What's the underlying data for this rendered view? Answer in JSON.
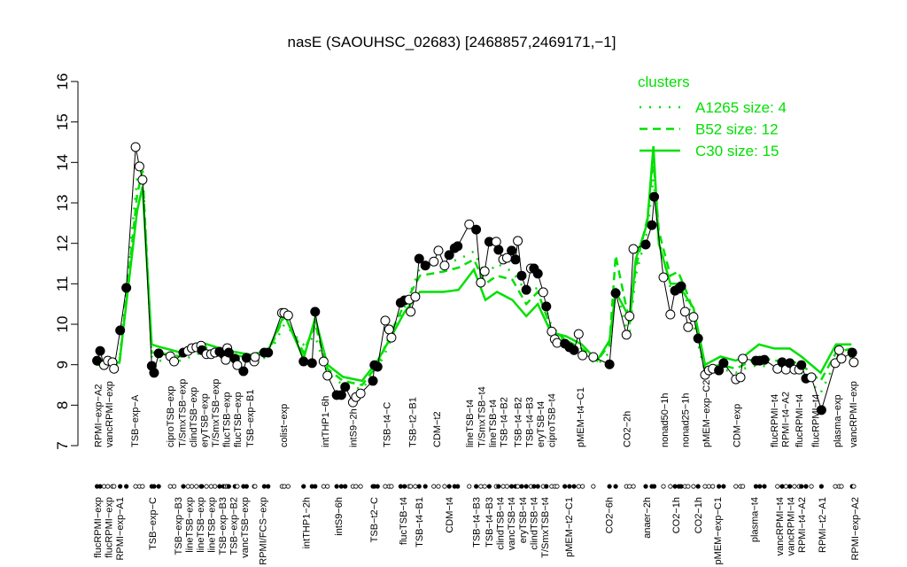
{
  "chart_data": {
    "type": "line",
    "title": "nasE (SAOUHSC_02683) [2468857,2469171,−1]",
    "xlabel": "",
    "ylabel": "",
    "ylim": [
      7,
      16
    ],
    "yticks": [
      7,
      8,
      9,
      10,
      11,
      12,
      13,
      14,
      15,
      16
    ],
    "xlim": [
      0,
      100
    ],
    "grid": false,
    "colors": {
      "data": "#000000",
      "cluster": "#00e000"
    },
    "legend": {
      "title": "clusters",
      "placement": "top-right",
      "entries": [
        {
          "label": "A1265 size: 4",
          "style": "dotted"
        },
        {
          "label": "B52 size: 12",
          "style": "dashed"
        },
        {
          "label": "C30 size: 15",
          "style": "solid"
        }
      ]
    },
    "points": [
      [
        1.1,
        9.1,
        1
      ],
      [
        1.5,
        9.34,
        1
      ],
      [
        2.0,
        8.99,
        0
      ],
      [
        2.5,
        9.1,
        0
      ],
      [
        3.1,
        9.06,
        0
      ],
      [
        3.3,
        8.9,
        0
      ],
      [
        4.1,
        9.85,
        1
      ],
      [
        4.9,
        10.9,
        1
      ],
      [
        6.1,
        14.38,
        0
      ],
      [
        6.6,
        13.9,
        0
      ],
      [
        7.0,
        13.57,
        0
      ],
      [
        8.2,
        8.97,
        1
      ],
      [
        8.5,
        8.8,
        1
      ],
      [
        9.1,
        9.28,
        1
      ],
      [
        10.6,
        9.21,
        0
      ],
      [
        11.1,
        9.08,
        0
      ],
      [
        12.3,
        9.3,
        1
      ],
      [
        12.9,
        9.34,
        0
      ],
      [
        13.4,
        9.41,
        0
      ],
      [
        14.0,
        9.43,
        0
      ],
      [
        14.6,
        9.47,
        0
      ],
      [
        14.7,
        9.36,
        1
      ],
      [
        15.3,
        9.26,
        0
      ],
      [
        15.9,
        9.26,
        0
      ],
      [
        16.4,
        9.3,
        0
      ],
      [
        17.0,
        9.32,
        1
      ],
      [
        17.5,
        9.26,
        1
      ],
      [
        17.8,
        9.12,
        0
      ],
      [
        18.0,
        9.41,
        0
      ],
      [
        18.2,
        9.3,
        1
      ],
      [
        19.0,
        9.15,
        1
      ],
      [
        19.3,
        8.99,
        0
      ],
      [
        20.1,
        8.84,
        1
      ],
      [
        20.5,
        9.17,
        1
      ],
      [
        21.5,
        9.08,
        0
      ],
      [
        21.6,
        9.19,
        0
      ],
      [
        22.8,
        9.3,
        1
      ],
      [
        23.3,
        9.3,
        1
      ],
      [
        25.1,
        10.28,
        0
      ],
      [
        25.4,
        10.28,
        0
      ],
      [
        25.9,
        10.22,
        0
      ],
      [
        27.9,
        9.08,
        1
      ],
      [
        29.0,
        9.04,
        1
      ],
      [
        29.4,
        10.31,
        1
      ],
      [
        30.5,
        9.08,
        0
      ],
      [
        31.0,
        8.73,
        0
      ],
      [
        32.2,
        8.25,
        1
      ],
      [
        32.8,
        8.25,
        1
      ],
      [
        33.3,
        8.45,
        1
      ],
      [
        34.3,
        8.07,
        0
      ],
      [
        34.7,
        8.2,
        0
      ],
      [
        35.3,
        8.29,
        0
      ],
      [
        36.9,
        8.6,
        1
      ],
      [
        37.1,
        8.99,
        1
      ],
      [
        37.5,
        8.95,
        1
      ],
      [
        38.5,
        10.09,
        0
      ],
      [
        39.0,
        9.87,
        0
      ],
      [
        39.3,
        9.67,
        0
      ],
      [
        40.5,
        10.53,
        1
      ],
      [
        41.0,
        10.59,
        1
      ],
      [
        41.6,
        10.61,
        0
      ],
      [
        41.8,
        10.31,
        0
      ],
      [
        42.4,
        10.68,
        0
      ],
      [
        42.9,
        11.62,
        1
      ],
      [
        43.7,
        11.45,
        1
      ],
      [
        44.8,
        11.55,
        0
      ],
      [
        45.4,
        11.82,
        0
      ],
      [
        46.2,
        11.45,
        0
      ],
      [
        46.8,
        11.71,
        1
      ],
      [
        47.5,
        11.88,
        1
      ],
      [
        47.9,
        11.93,
        1
      ],
      [
        49.4,
        12.47,
        0
      ],
      [
        50.3,
        12.34,
        1
      ],
      [
        50.9,
        11.03,
        0
      ],
      [
        51.4,
        11.31,
        0
      ],
      [
        52.0,
        12.04,
        1
      ],
      [
        52.9,
        12.04,
        0
      ],
      [
        53.2,
        11.84,
        1
      ],
      [
        53.8,
        11.6,
        0
      ],
      [
        54.3,
        11.64,
        0
      ],
      [
        54.9,
        11.82,
        1
      ],
      [
        55.4,
        11.6,
        1
      ],
      [
        55.7,
        12.06,
        0
      ],
      [
        56.2,
        11.2,
        1
      ],
      [
        56.8,
        10.85,
        1
      ],
      [
        57.4,
        11.38,
        0
      ],
      [
        57.8,
        11.38,
        1
      ],
      [
        58.3,
        11.25,
        1
      ],
      [
        59.0,
        10.79,
        0
      ],
      [
        59.4,
        10.44,
        1
      ],
      [
        60.1,
        9.82,
        0
      ],
      [
        60.5,
        9.63,
        0
      ],
      [
        60.8,
        9.54,
        0
      ],
      [
        61.8,
        9.52,
        1
      ],
      [
        62.4,
        9.43,
        1
      ],
      [
        63.0,
        9.36,
        1
      ],
      [
        63.6,
        9.76,
        0
      ],
      [
        64.1,
        9.23,
        0
      ],
      [
        65.5,
        9.19,
        0
      ],
      [
        67.6,
        9.01,
        1
      ],
      [
        68.4,
        10.77,
        1
      ],
      [
        69.8,
        9.74,
        0
      ],
      [
        70.2,
        10.2,
        0
      ],
      [
        70.7,
        11.86,
        0
      ],
      [
        72.3,
        11.97,
        1
      ],
      [
        73.1,
        12.45,
        1
      ],
      [
        73.4,
        13.15,
        1
      ],
      [
        74.6,
        11.16,
        0
      ],
      [
        75.5,
        10.24,
        0
      ],
      [
        76.1,
        10.83,
        1
      ],
      [
        76.6,
        10.88,
        1
      ],
      [
        76.9,
        10.94,
        1
      ],
      [
        77.4,
        10.31,
        0
      ],
      [
        77.8,
        9.93,
        0
      ],
      [
        78.5,
        10.18,
        0
      ],
      [
        79.1,
        9.65,
        1
      ],
      [
        80.0,
        8.75,
        0
      ],
      [
        80.5,
        8.86,
        0
      ],
      [
        81.0,
        8.9,
        0
      ],
      [
        81.8,
        8.86,
        1
      ],
      [
        82.4,
        9.04,
        1
      ],
      [
        84.0,
        8.64,
        0
      ],
      [
        84.6,
        8.69,
        0
      ],
      [
        84.9,
        9.15,
        0
      ],
      [
        86.6,
        9.1,
        1
      ],
      [
        87.1,
        9.1,
        1
      ],
      [
        87.7,
        9.12,
        1
      ],
      [
        89.4,
        8.9,
        0
      ],
      [
        90.0,
        9.06,
        1
      ],
      [
        90.5,
        8.88,
        0
      ],
      [
        91.0,
        9.04,
        1
      ],
      [
        91.6,
        8.88,
        0
      ],
      [
        92.2,
        8.88,
        0
      ],
      [
        92.5,
        8.99,
        1
      ],
      [
        93.1,
        8.66,
        1
      ],
      [
        93.8,
        8.69,
        0
      ],
      [
        95.1,
        7.88,
        1
      ],
      [
        96.9,
        9.04,
        0
      ],
      [
        97.4,
        9.36,
        0
      ],
      [
        97.7,
        9.15,
        0
      ],
      [
        99.1,
        9.3,
        1
      ],
      [
        99.3,
        9.06,
        0
      ]
    ],
    "series": [
      {
        "name": "C30 size: 15",
        "style": "solid",
        "x": [
          1,
          4,
          6.3,
          7,
          8.2,
          9,
          12,
          14.6,
          18,
          21,
          23.3,
          25.4,
          27.9,
          29.4,
          31,
          33,
          35.5,
          37.5,
          39,
          41,
          43,
          46,
          48,
          50,
          51.5,
          53,
          55,
          56.8,
          58.3,
          60,
          62,
          64,
          66,
          67.6,
          68.4,
          69.8,
          70.2,
          71,
          72.5,
          73.3,
          74,
          75.5,
          76.5,
          77.8,
          78.5,
          80,
          82,
          84,
          85,
          87,
          89,
          91,
          92.5,
          95,
          97,
          99
        ],
        "values": [
          9.1,
          9.05,
          12.8,
          13.4,
          9.5,
          9.45,
          9.3,
          9.55,
          9.35,
          9.25,
          9.35,
          10.25,
          9.15,
          10.15,
          9.0,
          8.7,
          8.6,
          9.1,
          9.6,
          10.3,
          10.8,
          10.8,
          10.85,
          11.35,
          10.6,
          10.8,
          10.6,
          10.2,
          10.5,
          9.8,
          9.7,
          9.5,
          9.1,
          9.6,
          10.8,
          10.3,
          10.0,
          11.6,
          12.5,
          14.4,
          12.0,
          11.0,
          11.0,
          10.6,
          10.4,
          9.0,
          9.2,
          9.1,
          9.2,
          9.5,
          9.4,
          9.4,
          9.2,
          8.8,
          9.5,
          9.5
        ]
      },
      {
        "name": "B52 size: 12",
        "style": "dashed",
        "x": [
          1,
          4,
          6.3,
          7,
          8.2,
          9,
          12,
          14.6,
          18,
          21,
          23.3,
          25.4,
          27.9,
          29.4,
          31,
          33,
          35.5,
          37.5,
          39,
          41,
          43,
          46,
          48,
          50,
          51.5,
          53,
          55,
          56.8,
          58.3,
          60,
          62,
          64,
          66,
          67.6,
          68.4,
          69.8,
          70.2,
          71,
          72.5,
          73.3,
          74,
          75.5,
          76.5,
          77.8,
          78.5,
          80,
          82,
          84,
          85,
          87,
          89,
          91,
          92.5,
          95,
          97,
          99
        ],
        "values": [
          9.0,
          9.0,
          13.2,
          13.8,
          9.3,
          9.3,
          9.2,
          9.45,
          9.3,
          9.15,
          9.3,
          10.2,
          9.3,
          10.0,
          8.9,
          8.6,
          8.5,
          9.0,
          9.7,
          10.5,
          11.2,
          11.3,
          11.4,
          11.6,
          11.0,
          11.2,
          11.1,
          10.5,
          10.8,
          9.9,
          9.6,
          9.4,
          9.1,
          9.5,
          11.7,
          10.4,
          10.1,
          11.4,
          12.6,
          14.1,
          12.3,
          11.2,
          11.3,
          10.7,
          10.3,
          8.9,
          9.0,
          8.9,
          9.0,
          9.2,
          9.1,
          9.1,
          9.0,
          8.6,
          9.3,
          9.4
        ]
      },
      {
        "name": "A1265 size: 4",
        "style": "dotted",
        "x": [
          1,
          4,
          6.3,
          7,
          8.2,
          9,
          12,
          14.6,
          18,
          21,
          23.3,
          25.4,
          27.9,
          29.4,
          31,
          33,
          35.5,
          37.5,
          39,
          41,
          43,
          46,
          48,
          50,
          51.5,
          53,
          55,
          56.8,
          58.3,
          60,
          62,
          64,
          66,
          67.6,
          68.4,
          69.8,
          70.2,
          71,
          72.5,
          73.3,
          74,
          75.5,
          76.5,
          77.8,
          78.5,
          80,
          82,
          84,
          85,
          87,
          89,
          91,
          92.5,
          95,
          97,
          99
        ],
        "values": [
          9.0,
          9.1,
          13.6,
          13.9,
          9.2,
          9.1,
          9.1,
          9.3,
          9.2,
          9.05,
          9.2,
          10.0,
          9.5,
          9.7,
          8.8,
          8.5,
          8.4,
          8.9,
          9.5,
          10.4,
          11.4,
          11.5,
          11.6,
          11.8,
          11.2,
          11.5,
          11.3,
          10.8,
          10.9,
          10.0,
          9.5,
          9.3,
          9.0,
          9.3,
          10.9,
          9.9,
          9.8,
          11.2,
          12.3,
          13.6,
          12.1,
          10.9,
          11.0,
          10.5,
          10.0,
          8.8,
          8.9,
          8.8,
          8.9,
          9.0,
          8.9,
          8.9,
          8.8,
          8.3,
          9.1,
          9.2
        ]
      }
    ],
    "labels_top": [
      [
        1.5,
        "RPMI−exp−A2"
      ],
      [
        2.3,
        "vancRPMI−exp"
      ],
      [
        6.0,
        "TSB−exp−A"
      ],
      [
        10.6,
        "ciproTSB−exp"
      ],
      [
        12.3,
        "T/SmxTSB−exp"
      ],
      [
        13.8,
        "clindTSB−exp"
      ],
      [
        15.2,
        "eryTSB−exp"
      ],
      [
        16.4,
        "T/SmxTSB−exp"
      ],
      [
        17.5,
        "flucTSB−exp"
      ],
      [
        19.2,
        "flucTSB−exp"
      ],
      [
        20.9,
        "TSB−exp−B1"
      ],
      [
        25.3,
        "colist−exp"
      ],
      [
        30.7,
        "intTHP1−6h"
      ],
      [
        34.3,
        "intS9−2h"
      ],
      [
        38.7,
        "TSB−t4−C"
      ],
      [
        42.0,
        "TSB−t2−B1"
      ],
      [
        45.2,
        "CDM−t2"
      ],
      [
        49.4,
        "lineTSB−t4"
      ],
      [
        51.1,
        "T/SmxTSB−t4"
      ],
      [
        52.5,
        "lineTSB−t4"
      ],
      [
        53.7,
        "TSB−t4−B2"
      ],
      [
        55.7,
        "TSB−t4−B2"
      ],
      [
        57.5,
        "TSB−t4−B3"
      ],
      [
        58.6,
        "eryTSB−t4"
      ],
      [
        59.8,
        "ciproTSB−t4"
      ],
      [
        63.8,
        "pMEM−t4−C1"
      ],
      [
        69.8,
        "CO2−2h"
      ],
      [
        74.7,
        "nonad50−1h"
      ],
      [
        77.4,
        "nonad25−1h"
      ],
      [
        80.1,
        "pMEM−exp−C2"
      ],
      [
        84.1,
        "CDM−exp"
      ],
      [
        89.4,
        "flucRPMI−t4"
      ],
      [
        90.0,
        "RPMI−t4−A2"
      ],
      [
        92.2,
        "flucRPMI−t4"
      ],
      [
        94.3,
        "flucRPMI−t4"
      ],
      [
        97.1,
        "plasma−exp"
      ],
      [
        99.2,
        "vancRPMI−exp"
      ]
    ],
    "labels_bottom": [
      [
        1.4,
        "flucRPMI−exp"
      ],
      [
        2.5,
        "flucRPMI−exp"
      ],
      [
        3.8,
        "RPMI−exp−A1"
      ],
      [
        8.3,
        "TSB−exp−C"
      ],
      [
        12.1,
        "TSB−exp−B3"
      ],
      [
        13.4,
        "lineTSB−exp"
      ],
      [
        14.9,
        "lineTSB−exp"
      ],
      [
        16.3,
        "lineTSB−exp"
      ],
      [
        16.9,
        "TSB−exp−B3"
      ],
      [
        18.2,
        "TSB−exp−B2"
      ],
      [
        19.5,
        "vancTSB−exp"
      ],
      [
        22.6,
        "RPMI/FCS−exp"
      ],
      [
        28.2,
        "intTHP1−2h"
      ],
      [
        32.4,
        "intS9−6h"
      ],
      [
        37.0,
        "TSB−t2−C"
      ],
      [
        40.8,
        "flucTSB−t4"
      ],
      [
        42.9,
        "TSB−t4−B1"
      ],
      [
        46.8,
        "CDM−t4"
      ],
      [
        50.3,
        "TSB−t4−B3"
      ],
      [
        52.1,
        "TSB−t4−B3"
      ],
      [
        53.2,
        "clindTSB−t4"
      ],
      [
        54.8,
        "vancTSB−t4"
      ],
      [
        56.3,
        "eryTSB−t4"
      ],
      [
        57.8,
        "clindTSB−t4"
      ],
      [
        59.2,
        "T/SmxTSB−t4"
      ],
      [
        62.3,
        "pMEM−t2−C1"
      ],
      [
        67.5,
        "CO2−6h"
      ],
      [
        72.4,
        "anaer−2h"
      ],
      [
        76.2,
        "CO2−1h"
      ],
      [
        79.1,
        "CO2−1h"
      ],
      [
        81.6,
        "pMEM−exp−C1"
      ],
      [
        86.4,
        "plasma−t4"
      ],
      [
        90.0,
        "vancRPMI−t4"
      ],
      [
        91.0,
        "vancRPMI−t4"
      ],
      [
        92.3,
        "RPMI−t4−A2"
      ],
      [
        95.2,
        "RPMI−t2−A1"
      ],
      [
        99.4,
        "RPMI−exp−A2"
      ]
    ]
  }
}
